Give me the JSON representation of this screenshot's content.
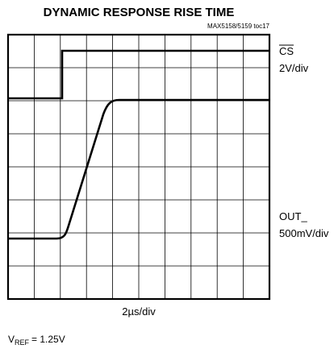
{
  "title": "DYNAMIC RESPONSE RISE TIME",
  "figure_id": "MAX5158/5159 toc17",
  "traces": [
    {
      "name": "CS",
      "scale": "2V/div"
    },
    {
      "name": "OUT_",
      "scale": "500mV/div"
    }
  ],
  "x_scale": "2µs/div",
  "note": {
    "symbol": "V",
    "subscript": "REF",
    "text": "= 1.25V"
  }
}
